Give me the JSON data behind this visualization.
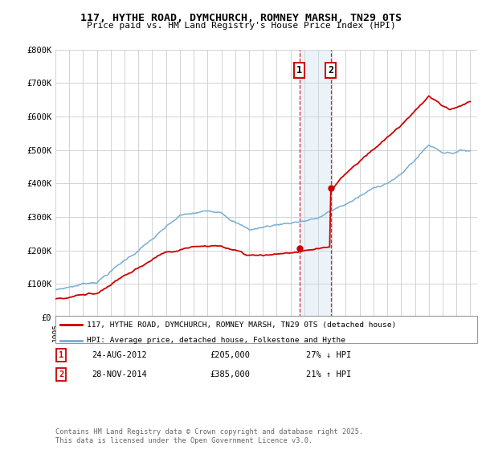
{
  "title_line1": "117, HYTHE ROAD, DYMCHURCH, ROMNEY MARSH, TN29 0TS",
  "title_line2": "Price paid vs. HM Land Registry's House Price Index (HPI)",
  "ylim": [
    0,
    800000
  ],
  "yticks": [
    0,
    100000,
    200000,
    300000,
    400000,
    500000,
    600000,
    700000,
    800000
  ],
  "ytick_labels": [
    "£0",
    "£100K",
    "£200K",
    "£300K",
    "£400K",
    "£500K",
    "£600K",
    "£700K",
    "£800K"
  ],
  "sale1_date": "24-AUG-2012",
  "sale1_price": 205000,
  "sale1_label": "27% ↓ HPI",
  "sale1_year": 2012.65,
  "sale2_date": "28-NOV-2014",
  "sale2_price": 385000,
  "sale2_label": "21% ↑ HPI",
  "sale2_year": 2014.92,
  "legend_line1": "117, HYTHE ROAD, DYMCHURCH, ROMNEY MARSH, TN29 0TS (detached house)",
  "legend_line2": "HPI: Average price, detached house, Folkestone and Hythe",
  "footer": "Contains HM Land Registry data © Crown copyright and database right 2025.\nThis data is licensed under the Open Government Licence v3.0.",
  "red_color": "#cc0000",
  "blue_color": "#7aadd4",
  "bg_color": "#ffffff",
  "grid_color": "#cccccc",
  "shade_color": "#c8dff0",
  "xlim_start": 1995,
  "xlim_end": 2025.5
}
